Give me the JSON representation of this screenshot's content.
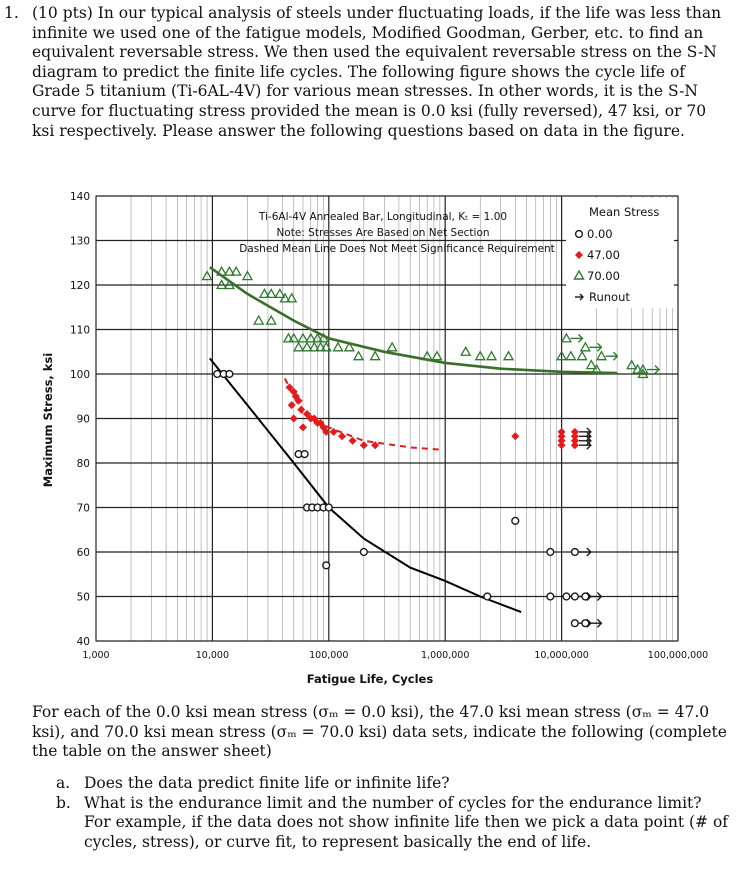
{
  "question": {
    "number": "1.",
    "text": "(10 pts) In our typical analysis of steels under fluctuating loads, if the life was less than infinite we used one of the fatigue models, Modified Goodman, Gerber, etc. to find an equivalent reversable stress. We then used the equivalent reversable stress on the S-N diagram to predict the finite life cycles. The following figure shows the cycle life of Grade 5 titanium (Ti-6AL-4V) for various mean stresses. In other words, it is the S-N curve for fluctuating stress provided the mean is 0.0 ksi (fully reversed), 47 ksi, or 70 ksi respectively. Please answer the following questions based on data in the figure."
  },
  "chart_data": {
    "type": "scatter",
    "title_lines": [
      "Ti-6Al-4V Annealed Bar, Longitudinal, Kₜ = 1.00",
      "Note: Stresses Are Based on Net Section",
      "Dashed Mean Line Does Not Meet Significance Requirement"
    ],
    "xlabel": "Fatigue Life, Cycles",
    "ylabel": "Maximum Stress, ksi",
    "x_scale": "log",
    "xlim": [
      1000,
      100000000
    ],
    "ylim": [
      40,
      140
    ],
    "x_ticks": [
      "1,000",
      "10,000",
      "100,000",
      "1,000,000",
      "10,000,000",
      "100,000,000"
    ],
    "y_ticks": [
      "40",
      "50",
      "60",
      "70",
      "80",
      "90",
      "100",
      "110",
      "120",
      "130",
      "140"
    ],
    "grid": true,
    "legend_title": "Mean Stress",
    "legend_position": "top-right",
    "legend": [
      {
        "label": "0.00",
        "marker": "circle-open",
        "color": "#1a1a1a"
      },
      {
        "label": "47.00",
        "marker": "diamond",
        "color": "#e41a1c"
      },
      {
        "label": "70.00",
        "marker": "triangle-open",
        "color": "#2f7a2f"
      },
      {
        "label": "Runout",
        "marker": "arrow",
        "color": "#1a1a1a"
      }
    ],
    "series": [
      {
        "name": "0.00",
        "marker": "circle-open",
        "color": "#1a1a1a",
        "points": [
          [
            11000,
            100
          ],
          [
            12500,
            100
          ],
          [
            14000,
            100
          ],
          [
            55000,
            82
          ],
          [
            62000,
            82
          ],
          [
            65000,
            70
          ],
          [
            72000,
            70
          ],
          [
            80000,
            70
          ],
          [
            90000,
            70
          ],
          [
            100000,
            70
          ],
          [
            95000,
            57
          ],
          [
            200000,
            60
          ],
          [
            2300000,
            50
          ],
          [
            4000000,
            67
          ],
          [
            8000000,
            60
          ],
          [
            8000000,
            50
          ],
          [
            11000000,
            50
          ]
        ],
        "runouts": [
          [
            13000000,
            60
          ],
          [
            13000000,
            50
          ],
          [
            16000000,
            50
          ],
          [
            13000000,
            44
          ],
          [
            16000000,
            44
          ]
        ],
        "curve": [
          [
            9500,
            103.5
          ],
          [
            20000,
            93
          ],
          [
            50000,
            80
          ],
          [
            100000,
            70
          ],
          [
            200000,
            63
          ],
          [
            500000,
            56.5
          ],
          [
            1000000,
            53.5
          ],
          [
            2000000,
            50
          ],
          [
            4500000,
            46.5
          ]
        ]
      },
      {
        "name": "47.00",
        "marker": "diamond",
        "color": "#e41a1c",
        "points": [
          [
            46000,
            97
          ],
          [
            50000,
            96
          ],
          [
            52000,
            95
          ],
          [
            55000,
            94
          ],
          [
            48000,
            93
          ],
          [
            58000,
            92
          ],
          [
            50000,
            90
          ],
          [
            65000,
            91
          ],
          [
            70000,
            90
          ],
          [
            75000,
            90
          ],
          [
            80000,
            89
          ],
          [
            85000,
            89
          ],
          [
            90000,
            88
          ],
          [
            95000,
            87
          ],
          [
            60000,
            88
          ],
          [
            110000,
            87
          ],
          [
            130000,
            86
          ],
          [
            160000,
            85
          ],
          [
            200000,
            84
          ],
          [
            250000,
            84
          ],
          [
            4000000,
            86
          ],
          [
            10000000,
            87
          ],
          [
            10000000,
            86
          ],
          [
            10000000,
            85
          ],
          [
            10000000,
            84
          ]
        ],
        "runouts": [
          [
            13000000,
            87
          ],
          [
            13000000,
            86
          ],
          [
            13000000,
            85
          ],
          [
            13000000,
            84
          ]
        ],
        "curve_dashed": [
          [
            42000,
            99
          ],
          [
            60000,
            91
          ],
          [
            100000,
            88
          ],
          [
            200000,
            85
          ],
          [
            500000,
            83.5
          ],
          [
            900000,
            83
          ]
        ]
      },
      {
        "name": "70.00",
        "marker": "triangle-open",
        "color": "#2f7a2f",
        "points": [
          [
            9000,
            122
          ],
          [
            12000,
            123
          ],
          [
            14000,
            123
          ],
          [
            16000,
            123
          ],
          [
            20000,
            122
          ],
          [
            12000,
            120
          ],
          [
            14000,
            120
          ],
          [
            28000,
            118
          ],
          [
            32000,
            118
          ],
          [
            38000,
            118
          ],
          [
            42000,
            117
          ],
          [
            48000,
            117
          ],
          [
            25000,
            112
          ],
          [
            32000,
            112
          ],
          [
            45000,
            108
          ],
          [
            50000,
            108
          ],
          [
            60000,
            108
          ],
          [
            70000,
            108
          ],
          [
            80000,
            108
          ],
          [
            90000,
            108
          ],
          [
            55000,
            106
          ],
          [
            65000,
            106
          ],
          [
            75000,
            106
          ],
          [
            85000,
            106
          ],
          [
            95000,
            106
          ],
          [
            120000,
            106
          ],
          [
            150000,
            106
          ],
          [
            180000,
            104
          ],
          [
            250000,
            104
          ],
          [
            350000,
            106
          ],
          [
            700000,
            104
          ],
          [
            850000,
            104
          ],
          [
            1500000,
            105
          ],
          [
            2000000,
            104
          ],
          [
            2500000,
            104
          ],
          [
            3500000,
            104
          ],
          [
            10000000,
            104
          ],
          [
            12000000,
            104
          ],
          [
            15000000,
            104
          ],
          [
            18000000,
            102
          ],
          [
            20000000,
            101
          ],
          [
            40000000,
            102
          ],
          [
            45000000,
            101
          ],
          [
            50000000,
            100
          ]
        ],
        "runouts": [
          [
            11000000,
            108
          ],
          [
            16000000,
            106
          ],
          [
            22000000,
            104
          ],
          [
            50000000,
            101
          ]
        ],
        "curve": [
          [
            9500,
            124
          ],
          [
            20000,
            118
          ],
          [
            50000,
            112
          ],
          [
            100000,
            108
          ],
          [
            300000,
            105
          ],
          [
            1000000,
            102.5
          ],
          [
            3000000,
            101.2
          ],
          [
            10000000,
            100.5
          ],
          [
            30000000,
            100.2
          ]
        ]
      }
    ]
  },
  "after_text": "For each of the 0.0 ksi mean stress (σₘ = 0.0 ksi), the 47.0 ksi mean stress (σₘ = 47.0 ksi), and 70.0 ksi mean stress (σₘ = 70.0 ksi) data sets, indicate the following (complete the table on the answer sheet)",
  "items": [
    {
      "marker": "a.",
      "text": "Does the data predict finite life or infinite life?"
    },
    {
      "marker": "b.",
      "text": "What is the endurance limit and the number of cycles for the endurance limit? For example, if the data does not show infinite life then we pick a data point (# of cycles, stress), or curve fit, to represent basically the end of life."
    }
  ]
}
